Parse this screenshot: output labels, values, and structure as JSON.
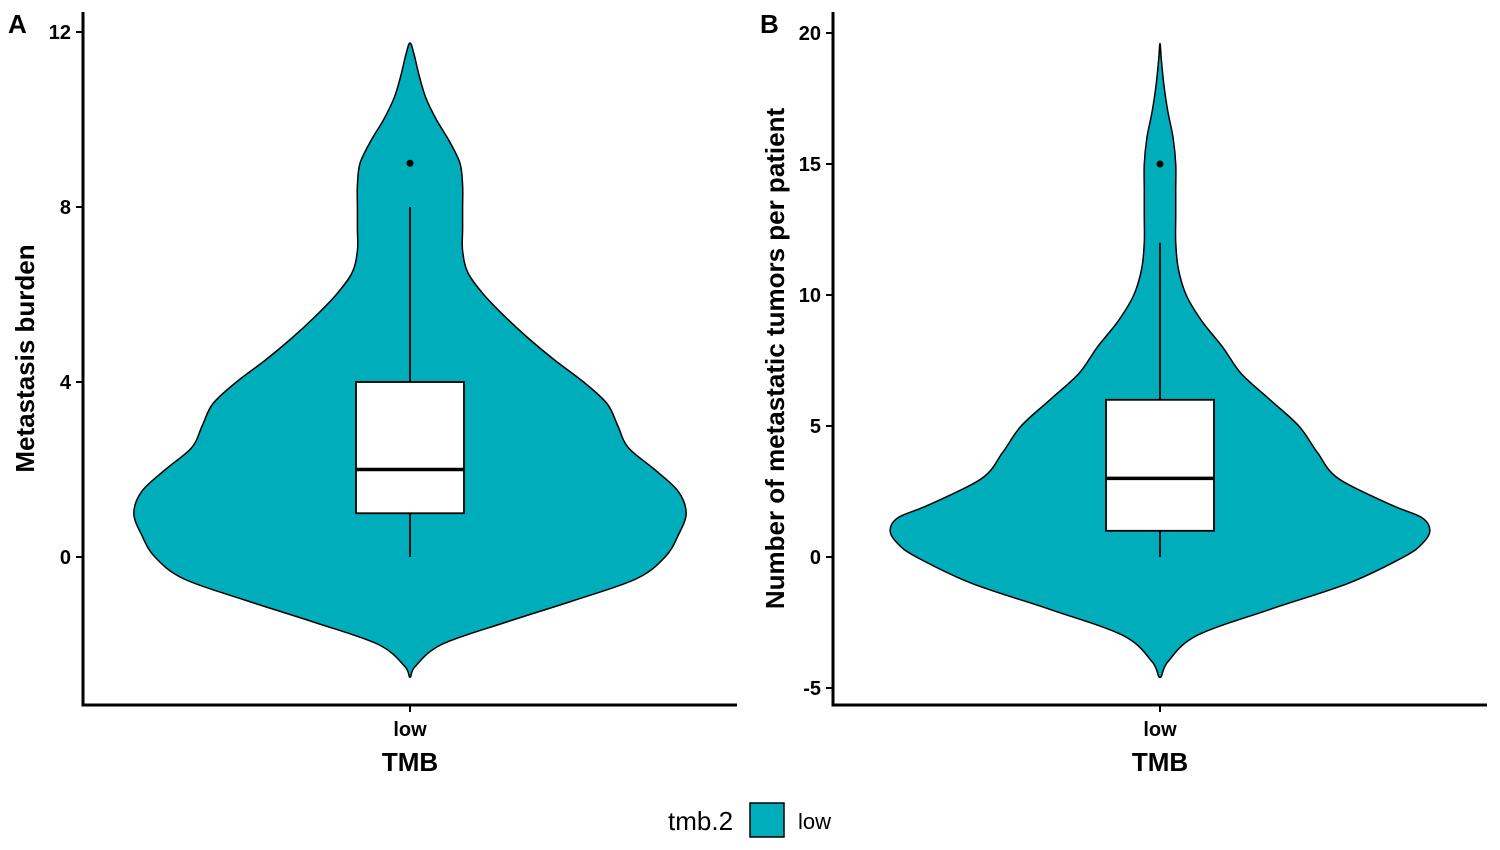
{
  "chart_data": [
    {
      "type": "violin",
      "panel": "A",
      "categories": [
        "low"
      ],
      "xlabel": "TMB",
      "ylabel": "Metastasis burden",
      "ylim": [
        -2.75,
        12.5
      ],
      "yticks": [
        0,
        4,
        8,
        12
      ],
      "box": {
        "min": 0,
        "q1": 1,
        "median": 2,
        "q3": 4,
        "max": 8
      },
      "outliers": [
        9
      ],
      "violin_profile": [
        [
          -2.75,
          0.0
        ],
        [
          -2.5,
          0.02
        ],
        [
          -2.0,
          0.12
        ],
        [
          -1.5,
          0.36
        ],
        [
          -1.0,
          0.62
        ],
        [
          -0.5,
          0.86
        ],
        [
          0.0,
          0.97
        ],
        [
          0.5,
          1.02
        ],
        [
          1.0,
          1.05
        ],
        [
          1.5,
          1.02
        ],
        [
          2.0,
          0.93
        ],
        [
          2.5,
          0.83
        ],
        [
          3.0,
          0.79
        ],
        [
          3.5,
          0.75
        ],
        [
          4.0,
          0.66
        ],
        [
          4.5,
          0.55
        ],
        [
          5.0,
          0.45
        ],
        [
          5.5,
          0.36
        ],
        [
          6.0,
          0.28
        ],
        [
          6.5,
          0.22
        ],
        [
          7.0,
          0.2
        ],
        [
          7.5,
          0.2
        ],
        [
          8.0,
          0.2
        ],
        [
          8.5,
          0.2
        ],
        [
          9.0,
          0.19
        ],
        [
          9.5,
          0.15
        ],
        [
          10.0,
          0.1
        ],
        [
          10.5,
          0.06
        ],
        [
          11.0,
          0.035
        ],
        [
          11.5,
          0.015
        ],
        [
          11.75,
          0.0
        ]
      ]
    },
    {
      "type": "violin",
      "panel": "B",
      "categories": [
        "low"
      ],
      "xlabel": "TMB",
      "ylabel": "Number of metastatic tumors per patient",
      "ylim": [
        -5.5,
        20.5
      ],
      "yticks": [
        -5,
        0,
        5,
        10,
        15,
        20
      ],
      "box": {
        "min": 0,
        "q1": 1,
        "median": 3,
        "q3": 6,
        "max": 12
      },
      "outliers": [
        15
      ],
      "violin_profile": [
        [
          -4.6,
          0.0
        ],
        [
          -4.0,
          0.03
        ],
        [
          -3.0,
          0.14
        ],
        [
          -2.0,
          0.42
        ],
        [
          -1.0,
          0.72
        ],
        [
          0.0,
          0.93
        ],
        [
          0.5,
          1.0
        ],
        [
          1.0,
          1.03
        ],
        [
          1.5,
          1.0
        ],
        [
          2.0,
          0.88
        ],
        [
          3.0,
          0.68
        ],
        [
          4.0,
          0.6
        ],
        [
          5.0,
          0.53
        ],
        [
          6.0,
          0.42
        ],
        [
          7.0,
          0.31
        ],
        [
          8.0,
          0.24
        ],
        [
          9.0,
          0.16
        ],
        [
          10.0,
          0.1
        ],
        [
          11.0,
          0.07
        ],
        [
          12.0,
          0.06
        ],
        [
          13.0,
          0.06
        ],
        [
          14.0,
          0.06
        ],
        [
          15.0,
          0.06
        ],
        [
          16.0,
          0.05
        ],
        [
          17.0,
          0.03
        ],
        [
          18.0,
          0.015
        ],
        [
          19.0,
          0.005
        ],
        [
          19.6,
          0.0
        ]
      ]
    }
  ],
  "legend": {
    "title": "tmb.2",
    "entries": [
      {
        "label": "low",
        "color": "#00AEBB"
      }
    ],
    "placement": "bottom"
  },
  "colors": {
    "fill": "#00AEBB",
    "box_fill": "#FFFFFF",
    "line": "#000000"
  }
}
